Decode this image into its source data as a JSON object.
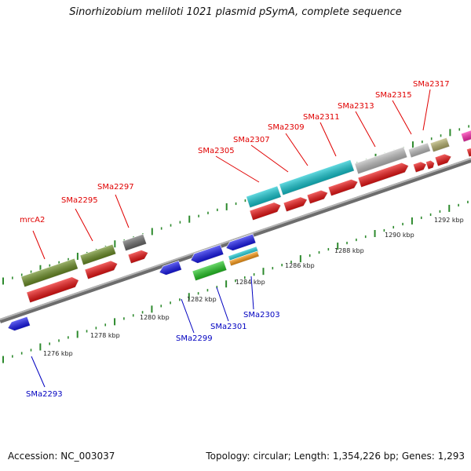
{
  "header": {
    "title": "Sinorhizobium meliloti 1021 plasmid pSymA, complete sequence"
  },
  "footer": {
    "accession": "Accession: NC_003037",
    "summary": "Topology: circular; Length: 1,354,226 bp; Genes: 1,293"
  },
  "ticks": [
    "1276 kbp",
    "1278 kbp",
    "1280 kbp",
    "1282 kbp",
    "1284 kbp",
    "1286 kbp",
    "1288 kbp",
    "1290 kbp",
    "1292 kbp"
  ],
  "forward_genes": [
    "mrcA2",
    "SMa2295",
    "SMa2297",
    "SMa2305",
    "SMa2307",
    "SMa2309",
    "SMa2311",
    "SMa2313",
    "SMa2315",
    "SMa2317"
  ],
  "reverse_genes": [
    "SMa2293",
    "SMa2299",
    "SMa2301",
    "SMa2303"
  ],
  "colors": {
    "cds": "#ee1111",
    "reverse_cds": "#1515ee",
    "olive": "#6b8e23",
    "cyan": "#12c8d2",
    "gray": "#bdbdbd",
    "green": "#22c822",
    "orange": "#ff9a10",
    "khaki": "#b5b06a",
    "magenta": "#ff2ab0",
    "backbone": "#8a8a8a",
    "tick": "#2d8a2d"
  }
}
